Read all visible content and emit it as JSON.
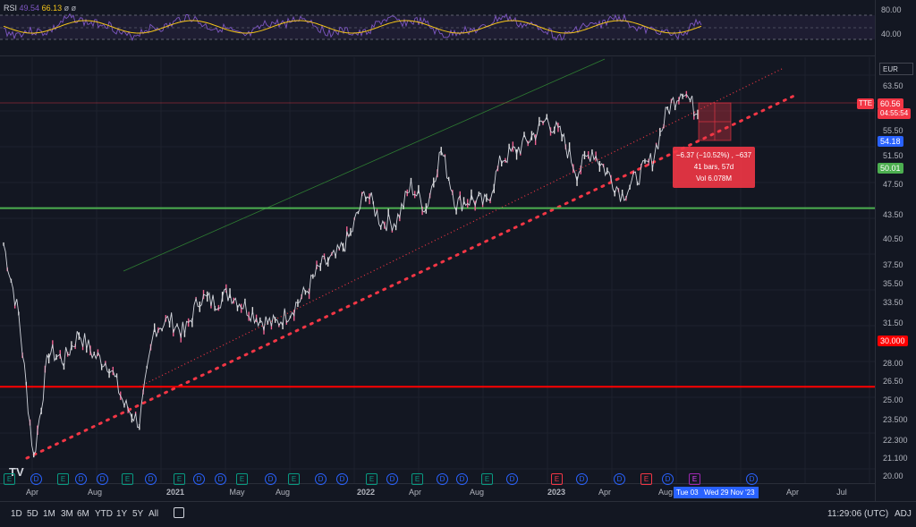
{
  "rsi": {
    "label": "RSI",
    "value1": "49.54",
    "value2": "66.13",
    "glyphs": "ø ø",
    "axis_labels": [
      "80.00",
      "40.00"
    ]
  },
  "symbol_tag": "TTE",
  "currency": "EUR",
  "price_axis_labels": [
    "63.50",
    "55.50",
    "51.50",
    "47.50",
    "43.50",
    "40.50",
    "37.50",
    "35.50",
    "33.50",
    "31.50",
    "29.500",
    "28.00",
    "26.50",
    "25.00",
    "23.500",
    "22.300",
    "21.100",
    "20.00"
  ],
  "price_tags": {
    "last_price": "60.56",
    "countdown": "04:55:54",
    "range_low": "54.18",
    "green_level": "50.01",
    "red_level": "30.000"
  },
  "measure": {
    "line1": "−6.37 (−10.52%) , −637",
    "line2": "41 bars, 57d",
    "line3": "Vol 6.078M"
  },
  "time_axis": [
    "Apr",
    "Aug",
    "2021",
    "May",
    "Aug",
    "2022",
    "Apr",
    "Aug",
    "2023",
    "Apr",
    "Aug",
    "Apr",
    "Jul"
  ],
  "time_tags": {
    "start": "Tue 03 Oct '23",
    "end": "Wed 29 Nov '23"
  },
  "toolbar": {
    "ranges": [
      "1D",
      "5D",
      "1M",
      "3M",
      "6M",
      "YTD",
      "1Y",
      "5Y",
      "All"
    ],
    "clock": "11:29:06 (UTC)",
    "adj": "ADJ"
  },
  "events": [
    {
      "t": "E",
      "k": "e"
    },
    {
      "t": "D",
      "k": "d"
    },
    {
      "t": "E",
      "k": "e"
    },
    {
      "t": "D",
      "k": "d"
    },
    {
      "t": "D",
      "k": "d"
    },
    {
      "t": "E",
      "k": "e"
    },
    {
      "t": "D",
      "k": "d"
    },
    {
      "t": "E",
      "k": "e"
    },
    {
      "t": "D",
      "k": "d"
    },
    {
      "t": "D",
      "k": "d"
    },
    {
      "t": "E",
      "k": "e"
    },
    {
      "t": "D",
      "k": "d"
    },
    {
      "t": "E",
      "k": "e"
    },
    {
      "t": "D",
      "k": "d"
    },
    {
      "t": "D",
      "k": "d"
    },
    {
      "t": "E",
      "k": "e"
    },
    {
      "t": "D",
      "k": "d"
    },
    {
      "t": "E",
      "k": "e"
    },
    {
      "t": "D",
      "k": "d"
    },
    {
      "t": "D",
      "k": "d"
    },
    {
      "t": "E",
      "k": "e"
    },
    {
      "t": "D",
      "k": "d"
    },
    {
      "t": "E",
      "k": "e-red"
    },
    {
      "t": "D",
      "k": "d"
    },
    {
      "t": "D",
      "k": "d"
    },
    {
      "t": "E",
      "k": "e-red"
    },
    {
      "t": "D",
      "k": "d"
    },
    {
      "t": "E",
      "k": "e-purple"
    },
    {
      "t": "D",
      "k": "d"
    }
  ],
  "colors": {
    "background": "#131722",
    "green_line": "#4caf50",
    "red_line": "#ff0000",
    "trend_dots": "#f23645",
    "rsi_line": "#7e57c2",
    "rsi_ma": "#f5c518"
  },
  "chart_data": {
    "type": "line",
    "title": "TTE",
    "series": [
      {
        "name": "",
        "x": [
          "2020-02",
          "2020-03",
          "2020-03",
          "2020-04",
          "2020-05",
          "2020-06",
          "2020-07",
          "2020-08",
          "2020-09",
          "2020-10",
          "2020-11",
          "2020-12",
          "2021-01",
          "2021-02",
          "2021-03",
          "2021-04",
          "2021-05",
          "2021-06",
          "2021-07",
          "2021-08",
          "2021-09",
          "2021-10",
          "2021-11",
          "2021-12",
          "2022-01",
          "2022-02",
          "2022-03",
          "2022-04",
          "2022-05",
          "2022-06",
          "2022-07",
          "2022-08",
          "2022-09",
          "2022-10",
          "2022-11",
          "2022-12",
          "2023-01",
          "2023-02",
          "2023-03",
          "2023-04",
          "2023-05",
          "2023-06",
          "2023-07",
          "2023-08",
          "2023-09",
          "2023-10",
          "2023-11"
        ],
        "y": [
          46.0,
          38.0,
          22.0,
          34.0,
          33.0,
          36.0,
          33.5,
          32.5,
          28.0,
          26.0,
          36.5,
          37.5,
          36.0,
          40.0,
          39.5,
          40.5,
          39.0,
          37.5,
          37.0,
          38.5,
          40.5,
          43.5,
          44.5,
          47.0,
          52.0,
          48.5,
          48.5,
          52.5,
          50.0,
          56.5,
          50.5,
          51.0,
          50.5,
          55.5,
          56.5,
          58.0,
          60.0,
          58.0,
          54.0,
          56.5,
          54.0,
          51.5,
          53.5,
          55.5,
          61.0,
          63.5,
          60.5
        ]
      }
    ],
    "levels": [
      50.01,
      30.0
    ],
    "ylim": [
      20.0,
      65.0
    ],
    "grid": true
  }
}
